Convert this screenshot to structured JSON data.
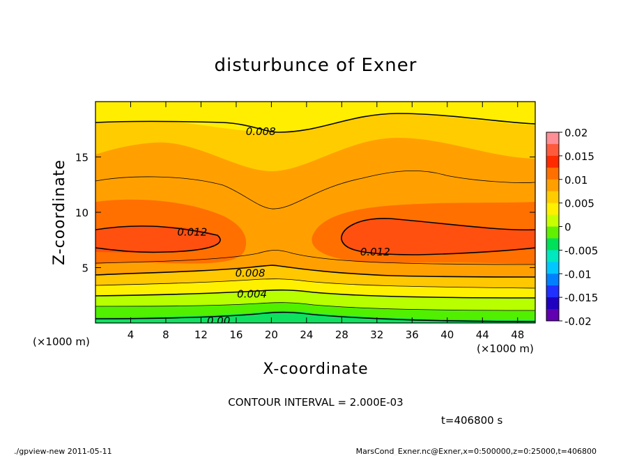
{
  "chart_data": {
    "type": "contour",
    "title": "disturbunce of Exner",
    "xlabel": "X-coordinate",
    "ylabel": "Z-coordinate",
    "x_unit_left": "(×1000 m)",
    "x_unit_right": "(×1000 m)",
    "xlim": [
      0,
      50
    ],
    "ylim": [
      0,
      20
    ],
    "x_ticks": [
      4,
      8,
      12,
      16,
      20,
      24,
      28,
      32,
      36,
      40,
      44,
      48
    ],
    "y_ticks": [
      5,
      10,
      15
    ],
    "contour_interval_text": "CONTOUR INTERVAL = 2.000E-03",
    "time_text": "t=406800 s",
    "footer_left": "./gpview-new  2011-05-11",
    "footer_right": "MarsCond_Exner.nc@Exner,x=0:500000,z=0:25000,t=406800",
    "contour_labels": [
      {
        "text": "0.008",
        "x": 18.8,
        "z": 17.3
      },
      {
        "text": "0.012",
        "x": 11.0,
        "z": 8.2
      },
      {
        "text": "0.012",
        "x": 31.8,
        "z": 6.4
      },
      {
        "text": "0.008",
        "x": 17.6,
        "z": 4.5
      },
      {
        "text": "0.004",
        "x": 17.8,
        "z": 2.6
      },
      {
        "text": "0.00",
        "x": 14.0,
        "z": 0.2
      }
    ],
    "colorbar": {
      "labels": [
        "0.02",
        "0.015",
        "0.01",
        "0.005",
        "0",
        "-0.005",
        "-0.01",
        "-0.015",
        "-0.02"
      ],
      "colors": [
        "#ff8e96",
        "#ff5a3c",
        "#ff2a00",
        "#ff7000",
        "#ffa000",
        "#ffcc00",
        "#fff000",
        "#c8ff00",
        "#60f000",
        "#00e058",
        "#00e8c0",
        "#00c8ff",
        "#0080ff",
        "#2030ff",
        "#2000c0",
        "#6000b0"
      ]
    }
  }
}
